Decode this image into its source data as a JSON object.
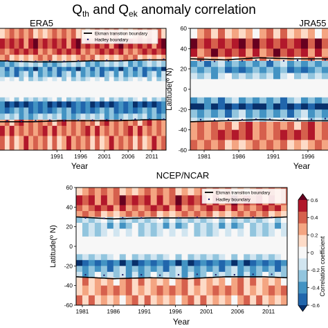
{
  "figure": {
    "title_parts": [
      "Q",
      "th",
      " and Q",
      "ek",
      " anomaly correlation"
    ]
  },
  "colorbar": {
    "label": "Correlation coefficient",
    "ticks": [
      -0.6,
      -0.4,
      -0.2,
      0,
      0.2,
      0.4,
      0.6
    ],
    "tick_labels": [
      "-0.6",
      "-0.4",
      "-0.2",
      "0",
      "0.2",
      "0.4",
      "0.6"
    ],
    "colors": [
      "#08306b",
      "#2166ac",
      "#4393c3",
      "#92c5de",
      "#d1e5f0",
      "#f7f7f7",
      "#fddbc7",
      "#f4a582",
      "#d6604d",
      "#b2182b",
      "#67001f"
    ]
  },
  "chart_data": [
    {
      "type": "heatmap",
      "panel": "ERA5",
      "title": "ERA5",
      "xlabel": "Year",
      "ylabel": "",
      "xlim": [
        1979,
        2014
      ],
      "ylim": [
        -60,
        60
      ],
      "xticks": [
        1991,
        1996,
        2001,
        2006,
        2011
      ],
      "xtick_labels": [
        "1991",
        "1996",
        "2001",
        "2006",
        "2011"
      ],
      "yticks": [],
      "ytick_labels": [],
      "legend": {
        "position": "upper-right",
        "entries": [
          "Ekman transition boundary",
          "Hadley boundary"
        ]
      },
      "colors": {
        "ekman": "#000000",
        "hadley": "#1f1f6b"
      },
      "bands": [
        {
          "lat": [
            50,
            60
          ],
          "r": 0.25
        },
        {
          "lat": [
            40,
            50
          ],
          "r": 0.42
        },
        {
          "lat": [
            34,
            40
          ],
          "r": 0.38
        },
        {
          "lat": [
            28,
            34
          ],
          "r": 0.22
        },
        {
          "lat": [
            22,
            28
          ],
          "r": -0.22
        },
        {
          "lat": [
            18,
            22
          ],
          "r": -0.4
        },
        {
          "lat": [
            12,
            18
          ],
          "r": -0.28
        },
        {
          "lat": [
            8,
            12
          ],
          "r": -0.12
        },
        {
          "lat": [
            -8,
            8
          ],
          "r": 0
        },
        {
          "lat": [
            -12,
            -8
          ],
          "r": -0.15
        },
        {
          "lat": [
            -18,
            -12
          ],
          "r": -0.5
        },
        {
          "lat": [
            -24,
            -18
          ],
          "r": -0.38
        },
        {
          "lat": [
            -30,
            -24
          ],
          "r": -0.22
        },
        {
          "lat": [
            -36,
            -30
          ],
          "r": 0.3
        },
        {
          "lat": [
            -46,
            -36
          ],
          "r": 0.32
        },
        {
          "lat": [
            -60,
            -46
          ],
          "r": 0.28
        }
      ],
      "ekman_boundary": {
        "north": {
          "years": [
            1979,
            1986,
            1992,
            1998,
            2004,
            2010,
            2014
          ],
          "lat": [
            28,
            27,
            27,
            28,
            28,
            29,
            29
          ]
        },
        "south": {
          "years": [
            1979,
            1986,
            1992,
            1998,
            2004,
            2010,
            2014
          ],
          "lat": [
            -32,
            -32,
            -31,
            -31,
            -31,
            -30,
            -30
          ]
        }
      },
      "hadley_boundary": {
        "north": {
          "years": [
            1980,
            1983,
            1986,
            1989,
            1992,
            1995,
            1998,
            2001,
            2004,
            2007,
            2010,
            2013
          ],
          "lat": [
            28,
            27.5,
            27.5,
            28,
            27.5,
            28,
            28.5,
            28.5,
            28,
            29,
            29,
            29.5
          ]
        },
        "south": {
          "years": [
            1980,
            1983,
            1986,
            1989,
            1992,
            1995,
            1998,
            2001,
            2004,
            2007,
            2010,
            2013
          ],
          "lat": [
            -31,
            -31.5,
            -31,
            -30.5,
            -31,
            -30.5,
            -30.5,
            -30,
            -30,
            -29.5,
            -29.5,
            -29.5
          ]
        }
      }
    },
    {
      "type": "heatmap",
      "panel": "JRA55",
      "title": "JRA55",
      "xlabel": "Year",
      "ylabel": "Latitude(º N)",
      "xlim": [
        1979,
        1999
      ],
      "ylim": [
        -60,
        60
      ],
      "xticks": [
        1981,
        1986,
        1991,
        1996
      ],
      "xtick_labels": [
        "1981",
        "1986",
        "1991",
        "1996"
      ],
      "yticks": [
        -60,
        -40,
        -20,
        0,
        20,
        40,
        60
      ],
      "ytick_labels": [
        "-60",
        "-40",
        "-20",
        "0",
        "20",
        "40",
        "60"
      ],
      "colors": {
        "ekman": "#000000",
        "hadley": "#1f1f6b"
      },
      "bands": [
        {
          "lat": [
            50,
            60
          ],
          "r": 0.2
        },
        {
          "lat": [
            40,
            50
          ],
          "r": 0.45
        },
        {
          "lat": [
            32,
            40
          ],
          "r": 0.4
        },
        {
          "lat": [
            28,
            32
          ],
          "r": 0.2
        },
        {
          "lat": [
            22,
            28
          ],
          "r": -0.3
        },
        {
          "lat": [
            16,
            22
          ],
          "r": -0.35
        },
        {
          "lat": [
            10,
            16
          ],
          "r": -0.18
        },
        {
          "lat": [
            -8,
            10
          ],
          "r": 0
        },
        {
          "lat": [
            -14,
            -8
          ],
          "r": -0.3
        },
        {
          "lat": [
            -20,
            -14
          ],
          "r": -0.55
        },
        {
          "lat": [
            -28,
            -20
          ],
          "r": -0.3
        },
        {
          "lat": [
            -32,
            -28
          ],
          "r": -0.1
        },
        {
          "lat": [
            -40,
            -32
          ],
          "r": 0.3
        },
        {
          "lat": [
            -50,
            -40
          ],
          "r": 0.38
        },
        {
          "lat": [
            -60,
            -50
          ],
          "r": 0.25
        }
      ],
      "ekman_boundary": {
        "north": {
          "years": [
            1979,
            1984,
            1989,
            1994,
            1999
          ],
          "lat": [
            30,
            29,
            31,
            30,
            30
          ]
        },
        "south": {
          "years": [
            1979,
            1984,
            1989,
            1994,
            1999
          ],
          "lat": [
            -32,
            -31,
            -30,
            -31,
            -31
          ]
        }
      },
      "hadley_boundary": {
        "north": {
          "years": [
            1980,
            1982,
            1984,
            1986,
            1988,
            1990,
            1992,
            1994,
            1996,
            1998
          ],
          "lat": [
            28,
            27.5,
            28,
            28,
            28.5,
            28.5,
            28,
            28.5,
            28.5,
            29
          ]
        },
        "south": {
          "years": [
            1980,
            1982,
            1984,
            1986,
            1988,
            1990,
            1992,
            1994,
            1996,
            1998
          ],
          "lat": [
            -30,
            -30.5,
            -30,
            -30,
            -29.5,
            -29.5,
            -30,
            -29.5,
            -29.5,
            -29
          ]
        }
      }
    },
    {
      "type": "heatmap",
      "panel": "NCEP/NCAR",
      "title": "NCEP/NCAR",
      "xlabel": "Year",
      "ylabel": "Latitude(º N)",
      "xlim": [
        1980,
        2014
      ],
      "ylim": [
        -60,
        60
      ],
      "xticks": [
        1981,
        1986,
        1991,
        1996,
        2001,
        2006,
        2011
      ],
      "xtick_labels": [
        "1981",
        "1986",
        "1991",
        "1996",
        "2001",
        "2006",
        "2011"
      ],
      "yticks": [
        -60,
        -40,
        -20,
        0,
        20,
        40,
        60
      ],
      "ytick_labels": [
        "-60",
        "-40",
        "-20",
        "0",
        "20",
        "40",
        "60"
      ],
      "legend": {
        "position": "upper-right",
        "entries": [
          "Ekman transition boundary",
          "Hadley boundary"
        ]
      },
      "colors": {
        "ekman": "#000000",
        "hadley": "#1f1f6b"
      },
      "bands": [
        {
          "lat": [
            52,
            60
          ],
          "r": 0.25
        },
        {
          "lat": [
            42,
            52
          ],
          "r": 0.4
        },
        {
          "lat": [
            36,
            42
          ],
          "r": 0.35
        },
        {
          "lat": [
            30,
            36
          ],
          "r": 0.25
        },
        {
          "lat": [
            24,
            30
          ],
          "r": -0.15
        },
        {
          "lat": [
            18,
            24
          ],
          "r": -0.2
        },
        {
          "lat": [
            10,
            18
          ],
          "r": -0.1
        },
        {
          "lat": [
            -8,
            10
          ],
          "r": 0
        },
        {
          "lat": [
            -14,
            -8
          ],
          "r": -0.15
        },
        {
          "lat": [
            -20,
            -14
          ],
          "r": -0.45
        },
        {
          "lat": [
            -26,
            -20
          ],
          "r": -0.3
        },
        {
          "lat": [
            -32,
            -26
          ],
          "r": -0.2
        },
        {
          "lat": [
            -40,
            -32
          ],
          "r": 0.2
        },
        {
          "lat": [
            -50,
            -40
          ],
          "r": 0.25
        },
        {
          "lat": [
            -60,
            -50
          ],
          "r": 0.2
        }
      ],
      "ekman_boundary": {
        "north": {
          "years": [
            1980,
            1986,
            1992,
            1998,
            2004,
            2010,
            2014
          ],
          "lat": [
            30,
            28,
            29,
            29,
            29,
            29,
            30
          ]
        },
        "south": {
          "years": [
            1980,
            1986,
            1992,
            1998,
            2004,
            2010,
            2014
          ],
          "lat": [
            -31,
            -33,
            -32,
            -33,
            -31,
            -31,
            -32
          ]
        }
      },
      "hadley_boundary": {
        "north": {
          "years": [
            1981,
            1984,
            1987,
            1990,
            1993,
            1996,
            1999,
            2002,
            2005,
            2008,
            2011,
            2014
          ],
          "lat": [
            29,
            28.5,
            29,
            29,
            28.5,
            29,
            29.5,
            29,
            29,
            29.5,
            29.5,
            30
          ]
        },
        "south": {
          "years": [
            1981,
            1984,
            1987,
            1990,
            1993,
            1996,
            1999,
            2002,
            2005,
            2008,
            2011,
            2014
          ],
          "lat": [
            -29,
            -29.5,
            -29,
            -29,
            -29.5,
            -29,
            -28.5,
            -29,
            -29,
            -28.5,
            -28.5,
            -28
          ]
        }
      }
    }
  ]
}
